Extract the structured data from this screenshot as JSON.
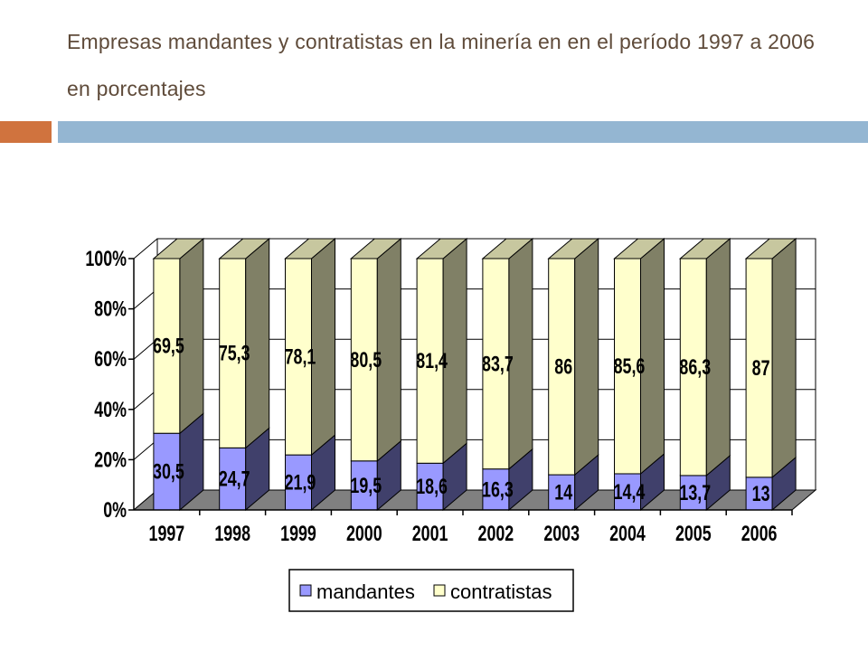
{
  "slide": {
    "title": "Empresas mandantes y contratistas en la minería en en el período 1997 a 2006 en porcentajes"
  },
  "colors": {
    "accent_orange": "#d0733e",
    "accent_blue": "#94b6d2",
    "mandantes": "#9999ff",
    "contratistas": "#ffffcc",
    "floor": "#808080"
  },
  "chart_data": {
    "type": "bar",
    "stacked": true,
    "percent": true,
    "three_d": true,
    "categories": [
      "1997",
      "1998",
      "1999",
      "2000",
      "2001",
      "2002",
      "2003",
      "2004",
      "2005",
      "2006"
    ],
    "series": [
      {
        "name": "mandantes",
        "values": [
          30.5,
          24.7,
          21.9,
          19.5,
          18.6,
          16.3,
          14,
          14.4,
          13.7,
          13
        ],
        "labels": [
          "30,5",
          "24,7",
          "21,9",
          "19,5",
          "18,6",
          "16,3",
          "14",
          "14,4",
          "13,7",
          "13"
        ]
      },
      {
        "name": "contratistas",
        "values": [
          69.5,
          75.3,
          78.1,
          80.5,
          81.4,
          83.7,
          86,
          85.6,
          86.3,
          87
        ],
        "labels": [
          "69,5",
          "75,3",
          "78,1",
          "80,5",
          "81,4",
          "83,7",
          "86",
          "85,6",
          "86,3",
          "87"
        ]
      }
    ],
    "y_ticks": [
      "0%",
      "20%",
      "40%",
      "60%",
      "80%",
      "100%"
    ],
    "ylim": [
      0,
      100
    ],
    "grid": true,
    "legend_position": "bottom"
  }
}
